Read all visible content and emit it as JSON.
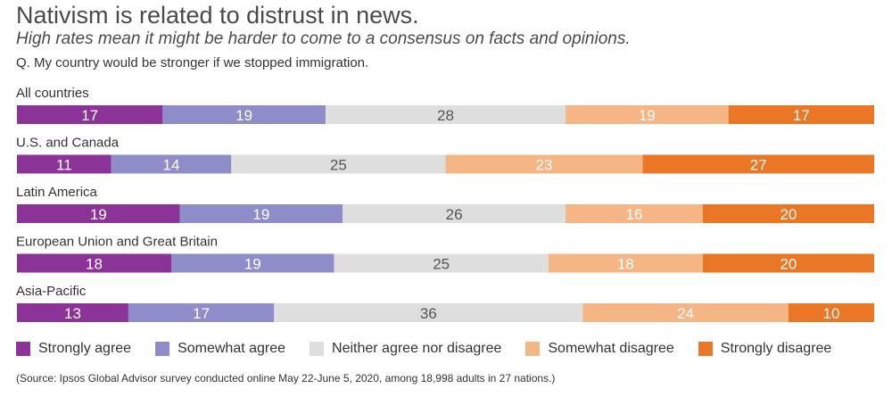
{
  "header": {
    "title": "Nativism is related to distrust in news.",
    "subtitle": "High rates mean it might be harder to come to a consensus on facts and opinions.",
    "question": "Q. My country would be stronger if we stopped immigration."
  },
  "chart_data": {
    "type": "bar",
    "orientation": "horizontal",
    "stacked": true,
    "categories": [
      "All countries",
      "U.S. and Canada",
      "Latin America",
      "European Union and Great Britain",
      "Asia-Pacific"
    ],
    "series": [
      {
        "name": "Strongly agree",
        "color": "#8b3396",
        "text_color": "#ffffff",
        "values": [
          17,
          11,
          19,
          18,
          13
        ]
      },
      {
        "name": "Somewhat agree",
        "color": "#8e8cc9",
        "text_color": "#ffffff",
        "values": [
          19,
          14,
          19,
          19,
          17
        ]
      },
      {
        "name": "Neither agree nor disagree",
        "color": "#dedede",
        "text_color": "#555555",
        "values": [
          28,
          25,
          26,
          25,
          36
        ]
      },
      {
        "name": "Somewhat disagree",
        "color": "#f5b585",
        "text_color": "#ffffff",
        "values": [
          19,
          23,
          16,
          18,
          24
        ]
      },
      {
        "name": "Strongly disagree",
        "color": "#ea7726",
        "text_color": "#ffffff",
        "values": [
          17,
          27,
          20,
          20,
          10
        ]
      }
    ],
    "xlim": [
      0,
      100
    ],
    "legend_position": "bottom"
  },
  "footer": {
    "source": "(Source: Ipsos Global Advisor survey conducted online May 22-June 5, 2020, among 18,998 adults in 27 nations.)"
  }
}
